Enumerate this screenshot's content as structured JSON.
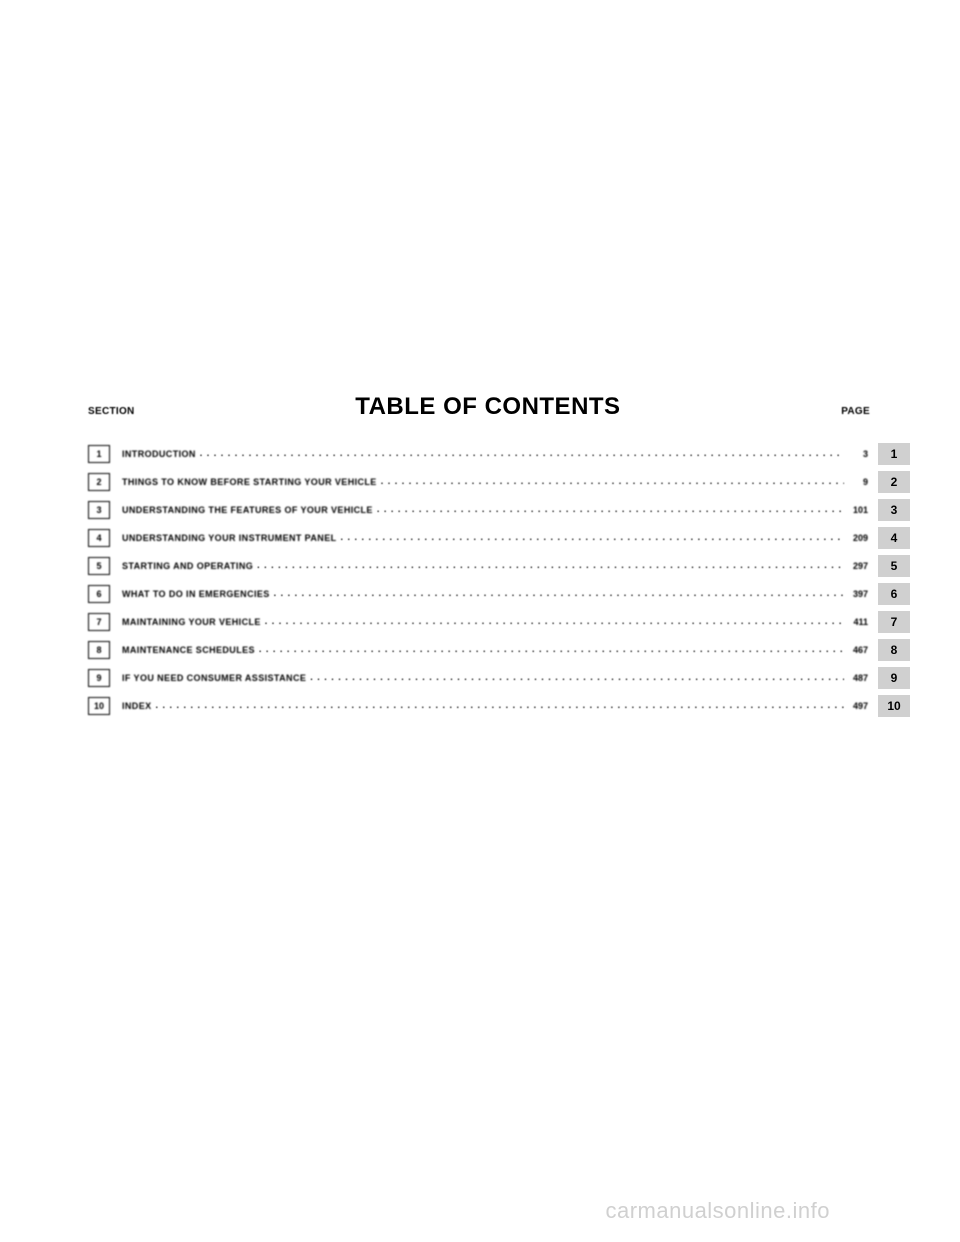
{
  "labels": {
    "section": "SECTION",
    "page": "PAGE"
  },
  "title": "TABLE OF CONTENTS",
  "entries": [
    {
      "num": "1",
      "title": "INTRODUCTION",
      "page": "3",
      "tab": "1"
    },
    {
      "num": "2",
      "title": "THINGS TO KNOW BEFORE STARTING YOUR VEHICLE",
      "page": "9",
      "tab": "2"
    },
    {
      "num": "3",
      "title": "UNDERSTANDING THE FEATURES OF YOUR VEHICLE",
      "page": "101",
      "tab": "3"
    },
    {
      "num": "4",
      "title": "UNDERSTANDING YOUR INSTRUMENT PANEL",
      "page": "209",
      "tab": "4"
    },
    {
      "num": "5",
      "title": "STARTING AND OPERATING",
      "page": "297",
      "tab": "5"
    },
    {
      "num": "6",
      "title": "WHAT TO DO IN EMERGENCIES",
      "page": "397",
      "tab": "6"
    },
    {
      "num": "7",
      "title": "MAINTAINING YOUR VEHICLE",
      "page": "411",
      "tab": "7"
    },
    {
      "num": "8",
      "title": "MAINTENANCE SCHEDULES",
      "page": "467",
      "tab": "8"
    },
    {
      "num": "9",
      "title": "IF YOU NEED CONSUMER ASSISTANCE",
      "page": "487",
      "tab": "9"
    },
    {
      "num": "10",
      "title": "INDEX",
      "page": "497",
      "tab": "10"
    }
  ],
  "watermark": "carmanualsonline.info",
  "colors": {
    "background": "#ffffff",
    "text": "#000000",
    "tab_bg": "#d0d0d0",
    "watermark": "#d0d0d0"
  }
}
